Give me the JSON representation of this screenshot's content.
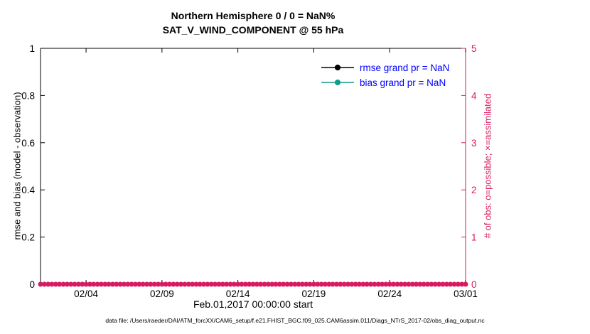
{
  "colors": {
    "axis": "#000000",
    "right_axis": "#d81b60",
    "legend_text": "#0000ff",
    "rmse_series": "#000000",
    "bias_series": "#119b8a"
  },
  "chart_data": {
    "type": "line",
    "title_line1": "Northern Hemisphere 0 / 0 = NaN%",
    "title_line2": "SAT_V_WIND_COMPONENT @ 55 hPa",
    "xlabel": "Feb.01,2017 00:00:00 start",
    "ylabel_left": "rmse and bias (model - observation)",
    "ylabel_right": "# of obs: o=possible; ×=assimilated",
    "xlim_days": [
      0,
      28
    ],
    "xticks": [
      {
        "label": "02/04",
        "day": 3
      },
      {
        "label": "02/09",
        "day": 8
      },
      {
        "label": "02/14",
        "day": 13
      },
      {
        "label": "02/19",
        "day": 18
      },
      {
        "label": "02/24",
        "day": 23
      },
      {
        "label": "03/01",
        "day": 28
      }
    ],
    "ylim_left": [
      0,
      1
    ],
    "yticks_left": [
      {
        "label": "0",
        "value": 0
      },
      {
        "label": "0.2",
        "value": 0.2
      },
      {
        "label": "0.4",
        "value": 0.4
      },
      {
        "label": "0.6",
        "value": 0.6
      },
      {
        "label": "0.8",
        "value": 0.8
      },
      {
        "label": "1",
        "value": 1
      }
    ],
    "ylim_right": [
      0,
      5
    ],
    "yticks_right": [
      {
        "label": "0",
        "value": 0
      },
      {
        "label": "1",
        "value": 1
      },
      {
        "label": "2",
        "value": 2
      },
      {
        "label": "3",
        "value": 3
      },
      {
        "label": "4",
        "value": 4
      },
      {
        "label": "5",
        "value": 5
      }
    ],
    "series": [
      {
        "name": "rmse grand pr = NaN",
        "color": "#000000",
        "values": []
      },
      {
        "name": "bias grand pr = NaN",
        "color": "#119b8a",
        "values": []
      }
    ],
    "obs_possible_row": {
      "marker": "o",
      "value": 0,
      "color": "#d81b60",
      "step_days": 0.25
    },
    "caption": "data file: /Users/raeder/DAI/ATM_forcXX/CAM6_setup/f.e21.FHIST_BGC.f09_025.CAM6assim.011/Diags_NTrS_2017-02/obs_diag_output.nc"
  }
}
